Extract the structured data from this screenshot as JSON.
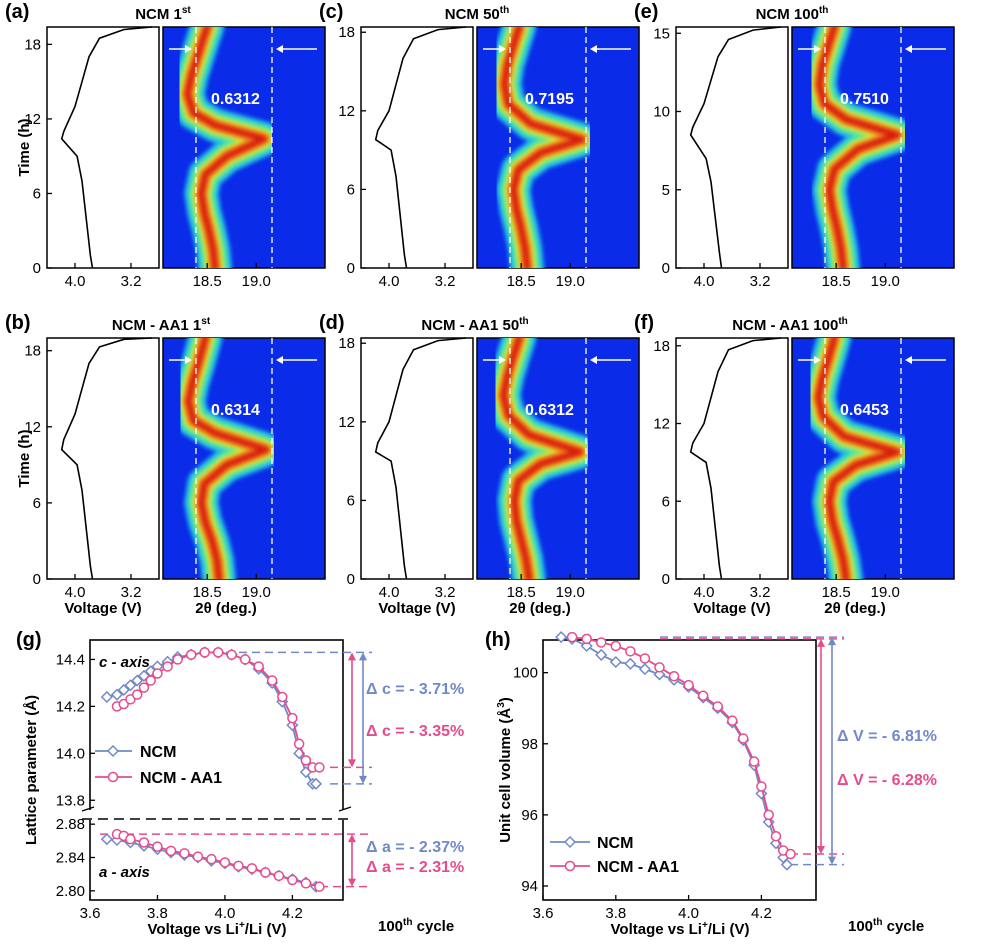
{
  "colors": {
    "heat_bg": "#0a2be8",
    "ncm": "#7189c9",
    "aa1": "#e64b8c",
    "black": "#000000",
    "white": "#ffffff"
  },
  "top_panels": [
    {
      "letter": "(a)",
      "title_main": "NCM  1",
      "title_sup": "st",
      "value_label": "0.6312",
      "time_ticks": [
        "0",
        "6",
        "12",
        "18"
      ],
      "time_max": 19.4,
      "voltage_ticks": [
        "4.0",
        "3.2"
      ],
      "theta_ticks": [
        "18.5",
        "19.0"
      ],
      "ridge_time": [
        0,
        1.5,
        3,
        4.5,
        6,
        7.5,
        9,
        10.4,
        11.5,
        12.5,
        14,
        15.5,
        17,
        18.5,
        19.4
      ],
      "ridge_theta": [
        18.58,
        18.56,
        18.52,
        18.47,
        18.44,
        18.48,
        18.7,
        19.08,
        18.58,
        18.36,
        18.3,
        18.34,
        18.4,
        18.46,
        18.5
      ],
      "voltage_time": [
        0,
        1,
        3,
        5,
        7,
        9,
        10.4,
        11,
        13,
        15,
        17,
        18.5,
        19.2,
        19.4
      ],
      "voltage_value": [
        3.75,
        3.78,
        3.82,
        3.86,
        3.9,
        3.97,
        4.19,
        4.16,
        4.0,
        3.9,
        3.8,
        3.65,
        3.3,
        2.9
      ]
    },
    {
      "letter": "(c)",
      "title_main": "NCM  50",
      "title_sup": "th",
      "value_label": "0.7195",
      "time_ticks": [
        "0",
        "6",
        "12",
        "18"
      ],
      "time_max": 18.4,
      "voltage_ticks": [
        "4.0",
        "3.2"
      ],
      "theta_ticks": [
        "18.5",
        "19.0"
      ],
      "ridge_time": [
        0,
        1.5,
        3,
        4.5,
        6,
        7.5,
        8.8,
        9.8,
        11,
        12.5,
        14,
        15.5,
        17,
        18.4
      ],
      "ridge_theta": [
        18.56,
        18.54,
        18.5,
        18.45,
        18.42,
        18.47,
        18.7,
        19.12,
        18.6,
        18.37,
        18.33,
        18.36,
        18.42,
        18.48
      ],
      "voltage_time": [
        0,
        1,
        3,
        5,
        7,
        9,
        9.8,
        10.5,
        12,
        14,
        16,
        17.5,
        18.2,
        18.4
      ],
      "voltage_value": [
        3.75,
        3.78,
        3.82,
        3.86,
        3.9,
        3.97,
        4.19,
        4.16,
        4.0,
        3.9,
        3.8,
        3.65,
        3.3,
        2.9
      ]
    },
    {
      "letter": "(e)",
      "title_main": "NCM  100",
      "title_sup": "th",
      "value_label": "0.7510",
      "time_ticks": [
        "0",
        "5",
        "10",
        "15"
      ],
      "time_max": 15.4,
      "voltage_ticks": [
        "4.0",
        "3.2"
      ],
      "theta_ticks": [
        "18.5",
        "19.0"
      ],
      "ridge_time": [
        0,
        1.2,
        2.5,
        3.8,
        5,
        6.3,
        7.6,
        8.5,
        9.5,
        10.5,
        11.7,
        13,
        14.2,
        15.4
      ],
      "ridge_theta": [
        18.57,
        18.55,
        18.51,
        18.46,
        18.43,
        18.48,
        18.72,
        19.12,
        18.6,
        18.38,
        18.33,
        18.36,
        18.42,
        18.48
      ],
      "voltage_time": [
        0,
        1,
        2.5,
        4,
        5.5,
        7,
        8.5,
        9,
        10.5,
        12,
        13.5,
        14.6,
        15.2,
        15.4
      ],
      "voltage_value": [
        3.75,
        3.78,
        3.82,
        3.86,
        3.9,
        3.97,
        4.19,
        4.16,
        4.0,
        3.9,
        3.8,
        3.65,
        3.3,
        2.9
      ]
    }
  ],
  "bottom_panels": [
    {
      "letter": "(b)",
      "title_main": "NCM - AA1  1",
      "title_sup": "st",
      "value_label": "0.6314",
      "time_ticks": [
        "0",
        "6",
        "12",
        "18"
      ],
      "time_max": 19.0,
      "voltage_ticks": [
        "4.0",
        "3.2"
      ],
      "theta_ticks": [
        "18.5",
        "19.0"
      ],
      "ridge_time": [
        0,
        1.5,
        3,
        4.5,
        6,
        7.5,
        9,
        10.2,
        11.5,
        12.5,
        14,
        15.5,
        17,
        19
      ],
      "ridge_theta": [
        18.62,
        18.6,
        18.55,
        18.48,
        18.44,
        18.47,
        18.7,
        19.1,
        18.58,
        18.36,
        18.31,
        18.35,
        18.41,
        18.48
      ],
      "voltage_time": [
        0,
        1,
        3,
        5,
        7,
        9,
        10.2,
        11,
        13,
        15,
        17,
        18.3,
        18.9,
        19.0
      ],
      "voltage_value": [
        3.75,
        3.78,
        3.82,
        3.86,
        3.9,
        3.97,
        4.19,
        4.16,
        4.0,
        3.9,
        3.8,
        3.65,
        3.3,
        2.9
      ]
    },
    {
      "letter": "(d)",
      "title_main": "NCM - AA1  50",
      "title_sup": "th",
      "value_label": "0.6312",
      "time_ticks": [
        "0",
        "6",
        "12",
        "18"
      ],
      "time_max": 18.4,
      "voltage_ticks": [
        "4.0",
        "3.2"
      ],
      "theta_ticks": [
        "18.5",
        "19.0"
      ],
      "ridge_time": [
        0,
        1.5,
        3,
        4.5,
        6,
        7.5,
        8.8,
        9.7,
        11,
        12.5,
        14,
        15.5,
        17,
        18.4
      ],
      "ridge_theta": [
        18.58,
        18.55,
        18.5,
        18.45,
        18.43,
        18.47,
        18.7,
        19.1,
        18.58,
        18.37,
        18.32,
        18.36,
        18.42,
        18.48
      ],
      "voltage_time": [
        0,
        1,
        3,
        5,
        7,
        9,
        9.7,
        10.4,
        12,
        14,
        16,
        17.5,
        18.2,
        18.4
      ],
      "voltage_value": [
        3.75,
        3.78,
        3.82,
        3.86,
        3.9,
        3.97,
        4.19,
        4.16,
        4.0,
        3.9,
        3.8,
        3.65,
        3.3,
        2.9
      ]
    },
    {
      "letter": "(f)",
      "title_main": "NCM - AA1  100",
      "title_sup": "th",
      "value_label": "0.6453",
      "time_ticks": [
        "0",
        "6",
        "12",
        "18"
      ],
      "time_max": 18.6,
      "voltage_ticks": [
        "4.0",
        "3.2"
      ],
      "theta_ticks": [
        "18.5",
        "19.0"
      ],
      "ridge_time": [
        0,
        1.5,
        3,
        4.5,
        6,
        7.5,
        8.8,
        9.8,
        11,
        12.5,
        14,
        15.5,
        17,
        18.6
      ],
      "ridge_theta": [
        18.6,
        18.57,
        18.52,
        18.46,
        18.43,
        18.47,
        18.7,
        19.12,
        18.58,
        18.37,
        18.32,
        18.36,
        18.42,
        18.48
      ],
      "voltage_time": [
        0,
        1,
        3,
        5,
        7,
        9,
        9.8,
        10.5,
        12,
        14,
        16,
        17.7,
        18.4,
        18.6
      ],
      "voltage_value": [
        3.75,
        3.78,
        3.82,
        3.86,
        3.9,
        3.97,
        4.19,
        4.16,
        4.0,
        3.9,
        3.8,
        3.65,
        3.3,
        2.9
      ]
    }
  ],
  "axis_labels": {
    "time": "Time (h)",
    "voltage": "Voltage (V)",
    "theta": "2θ (deg.)"
  },
  "panel_g": {
    "letter": "(g)",
    "ylabel": "Lattice parameter (Å)",
    "xlabel": "Voltage vs Li",
    "xlabel_sup": "+",
    "xlabel_tail": "/Li (V)",
    "x_ticks": [
      "3.6",
      "3.8",
      "4.0",
      "4.2"
    ],
    "c_ticks": [
      "13.8",
      "14.0",
      "14.2",
      "14.4"
    ],
    "a_ticks": [
      "2.80",
      "2.84",
      "2.88"
    ],
    "c_axis_label": "c - axis",
    "a_axis_label": "a - axis",
    "legend": [
      "NCM",
      "NCM - AA1"
    ],
    "cycle_note": "100",
    "cycle_note_sup": "th",
    "cycle_note_tail": " cycle",
    "delta_c_ncm": "Δ c = - 3.71%",
    "delta_c_aa1": "Δ c = - 3.35%",
    "delta_a_ncm": "Δ a = - 2.37%",
    "delta_a_aa1": "Δ a = - 2.31%"
  },
  "panel_h": {
    "letter": "(h)",
    "ylabel": "Unit cell volume (Å",
    "ylabel_sup": "3",
    "ylabel_tail": ")",
    "xlabel": "Voltage vs Li",
    "xlabel_sup": "+",
    "xlabel_tail": "/Li (V)",
    "x_ticks": [
      "3.6",
      "3.8",
      "4.0",
      "4.2"
    ],
    "y_ticks": [
      "94",
      "96",
      "98",
      "100"
    ],
    "legend": [
      "NCM",
      "NCM - AA1"
    ],
    "cycle_note": "100",
    "cycle_note_sup": "th",
    "cycle_note_tail": " cycle",
    "delta_v_ncm": "Δ V = - 6.81%",
    "delta_v_aa1": "Δ V = - 6.28%"
  },
  "chart_data": [
    {
      "type": "line",
      "panel": "g-c-axis",
      "xlabel": "Voltage vs Li+/Li (V)",
      "ylabel": "Lattice parameter (Å)",
      "xlim": [
        3.6,
        4.35
      ],
      "ylim": [
        13.75,
        14.47
      ],
      "series": [
        {
          "name": "NCM",
          "x": [
            3.65,
            3.68,
            3.7,
            3.72,
            3.74,
            3.76,
            3.78,
            3.8,
            3.83,
            3.86,
            3.9,
            3.94,
            3.98,
            4.02,
            4.06,
            4.1,
            4.14,
            4.17,
            4.2,
            4.22,
            4.24,
            4.26,
            4.27
          ],
          "y": [
            14.24,
            14.25,
            14.27,
            14.29,
            14.31,
            14.33,
            14.35,
            14.37,
            14.39,
            14.41,
            14.42,
            14.43,
            14.43,
            14.42,
            14.4,
            14.36,
            14.3,
            14.22,
            14.12,
            14.0,
            13.92,
            13.87,
            13.87
          ]
        },
        {
          "name": "NCM - AA1",
          "x": [
            3.68,
            3.7,
            3.72,
            3.74,
            3.76,
            3.78,
            3.8,
            3.83,
            3.86,
            3.9,
            3.94,
            3.98,
            4.02,
            4.06,
            4.1,
            4.14,
            4.17,
            4.2,
            4.22,
            4.24,
            4.26,
            4.28
          ],
          "y": [
            14.2,
            14.21,
            14.23,
            14.25,
            14.28,
            14.31,
            14.34,
            14.37,
            14.4,
            14.42,
            14.43,
            14.43,
            14.42,
            14.4,
            14.37,
            14.31,
            14.24,
            14.15,
            14.04,
            13.97,
            13.94,
            13.94
          ]
        }
      ]
    },
    {
      "type": "line",
      "panel": "g-a-axis",
      "xlabel": "Voltage vs Li+/Li (V)",
      "ylabel": "Lattice parameter (Å)",
      "xlim": [
        3.6,
        4.35
      ],
      "ylim": [
        2.795,
        2.885
      ],
      "series": [
        {
          "name": "NCM",
          "x": [
            3.65,
            3.68,
            3.72,
            3.76,
            3.8,
            3.84,
            3.88,
            3.92,
            3.96,
            4.0,
            4.04,
            4.08,
            4.12,
            4.16,
            4.2,
            4.24,
            4.27
          ],
          "y": [
            2.862,
            2.861,
            2.858,
            2.854,
            2.85,
            2.846,
            2.843,
            2.84,
            2.836,
            2.833,
            2.829,
            2.826,
            2.822,
            2.818,
            2.814,
            2.81,
            2.805
          ]
        },
        {
          "name": "NCM - AA1",
          "x": [
            3.68,
            3.7,
            3.72,
            3.76,
            3.8,
            3.84,
            3.88,
            3.92,
            3.96,
            4.0,
            4.04,
            4.08,
            4.12,
            4.16,
            4.2,
            4.24,
            4.28
          ],
          "y": [
            2.868,
            2.866,
            2.862,
            2.858,
            2.853,
            2.848,
            2.845,
            2.841,
            2.838,
            2.834,
            2.83,
            2.827,
            2.822,
            2.818,
            2.813,
            2.809,
            2.805
          ]
        }
      ]
    },
    {
      "type": "line",
      "panel": "h",
      "xlabel": "Voltage vs Li+/Li (V)",
      "ylabel": "Unit cell volume (Å3)",
      "xlim": [
        3.6,
        4.35
      ],
      "ylim": [
        94,
        101.2
      ],
      "series": [
        {
          "name": "NCM",
          "x": [
            3.65,
            3.68,
            3.72,
            3.76,
            3.8,
            3.84,
            3.88,
            3.92,
            3.96,
            4.0,
            4.04,
            4.08,
            4.12,
            4.15,
            4.18,
            4.2,
            4.22,
            4.24,
            4.26,
            4.27
          ],
          "y": [
            101.0,
            100.95,
            100.75,
            100.5,
            100.3,
            100.25,
            100.1,
            99.95,
            99.8,
            99.6,
            99.3,
            99.0,
            98.6,
            98.1,
            97.4,
            96.6,
            95.8,
            95.2,
            94.8,
            94.6
          ]
        },
        {
          "name": "NCM - AA1",
          "x": [
            3.68,
            3.72,
            3.76,
            3.8,
            3.84,
            3.88,
            3.92,
            3.96,
            4.0,
            4.04,
            4.08,
            4.12,
            4.15,
            4.18,
            4.2,
            4.22,
            4.24,
            4.26,
            4.28
          ],
          "y": [
            101.0,
            100.95,
            100.85,
            100.75,
            100.6,
            100.4,
            100.15,
            99.9,
            99.65,
            99.35,
            99.05,
            98.65,
            98.15,
            97.5,
            96.8,
            96.0,
            95.4,
            95.0,
            94.9
          ]
        }
      ]
    }
  ]
}
